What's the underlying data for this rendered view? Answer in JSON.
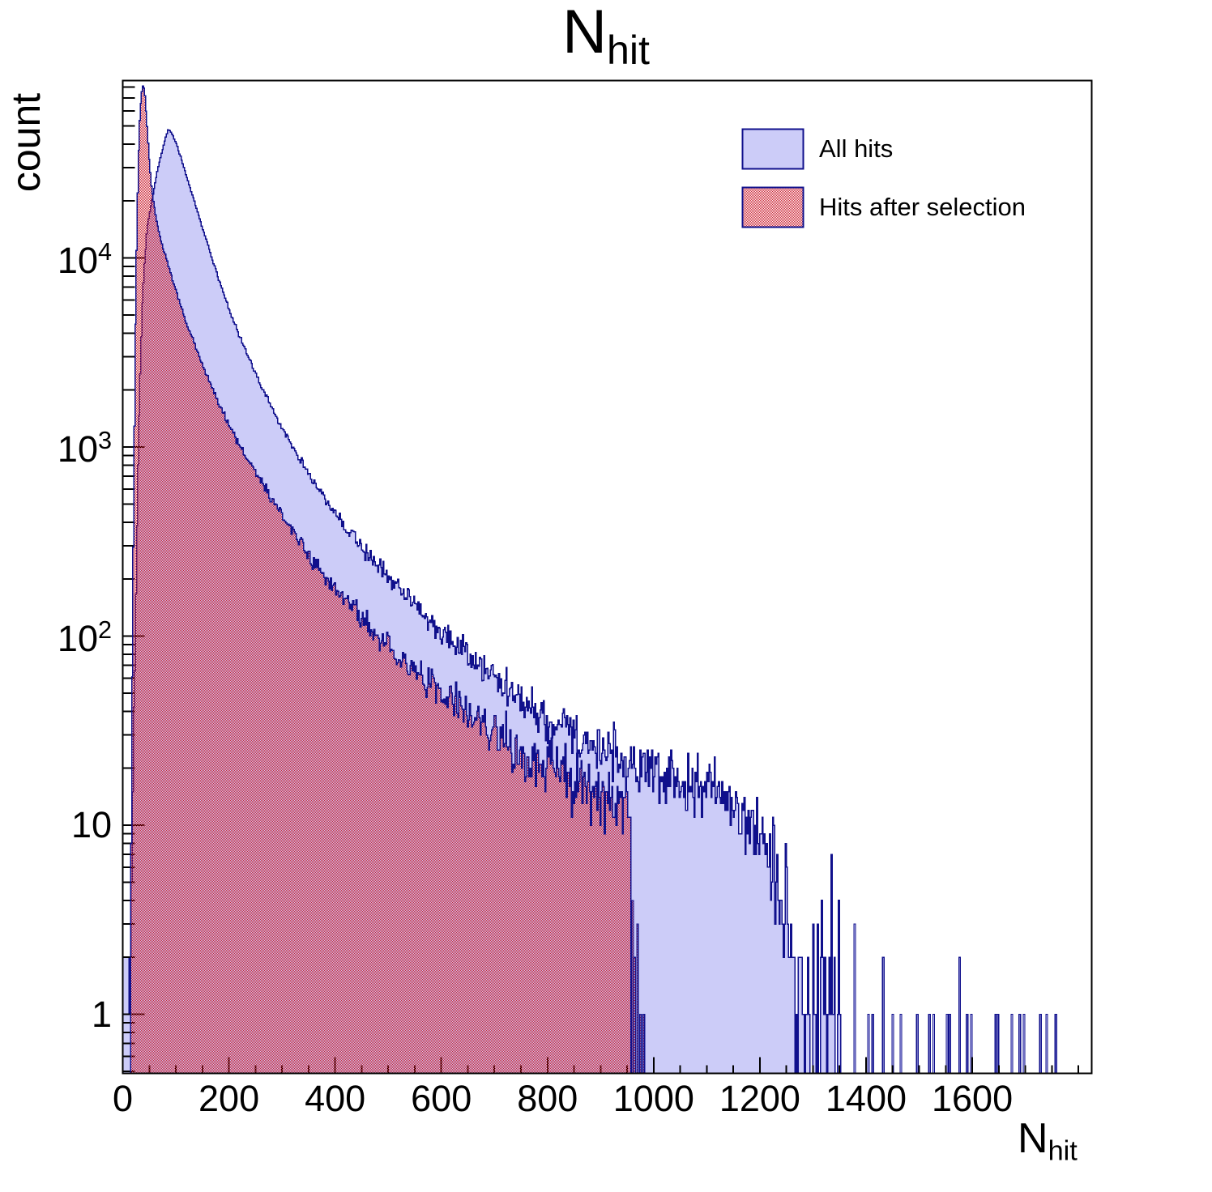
{
  "title": {
    "main": "N",
    "sub": "hit"
  },
  "axes": {
    "y_title": "count",
    "x_title_main": "N",
    "x_title_sub": "hit",
    "x_tick_labels": [
      "0",
      "200",
      "400",
      "600",
      "800",
      "1000",
      "1200",
      "1400",
      "1600"
    ],
    "y_tick_labels": [
      {
        "base": "1",
        "exp": ""
      },
      {
        "base": "10",
        "exp": ""
      },
      {
        "base": "10",
        "exp": "2"
      },
      {
        "base": "10",
        "exp": "3"
      },
      {
        "base": "10",
        "exp": "4"
      }
    ]
  },
  "legend": {
    "items": [
      {
        "label": "All hits",
        "swatch": "solid"
      },
      {
        "label": "Hits after selection",
        "swatch": "checker"
      }
    ]
  },
  "colors": {
    "background": "#ffffff",
    "axis": "#000000",
    "blue_fill": "#ccccf8",
    "navy_line": "#10108c",
    "red": "#cc2233"
  },
  "chart_data": {
    "type": "bar",
    "subtype": "step-histogram",
    "title": "N_hit",
    "xlabel": "N_hit",
    "ylabel": "count",
    "yscale": "log",
    "xlim": [
      0,
      1825
    ],
    "ylim": [
      0.49,
      88000
    ],
    "grid": false,
    "legend_position": "top-right-inside",
    "x_major_ticks": [
      0,
      200,
      400,
      600,
      800,
      1000,
      1200,
      1400,
      1600
    ],
    "x_minor_step": 50,
    "y_major_ticks": [
      1,
      10,
      100,
      1000,
      10000
    ],
    "bin_width": 2,
    "series": [
      {
        "name": "All hits",
        "style": "solid",
        "peak": {
          "x": 84,
          "count": 47500
        },
        "anchors": [
          [
            0,
            2
          ],
          [
            2,
            2
          ],
          [
            4,
            1
          ],
          [
            6,
            1
          ],
          [
            8,
            1
          ],
          [
            10,
            1
          ],
          [
            12,
            2
          ],
          [
            14,
            3
          ],
          [
            16,
            6
          ],
          [
            18,
            14
          ],
          [
            20,
            30
          ],
          [
            22,
            75
          ],
          [
            24,
            170
          ],
          [
            26,
            380
          ],
          [
            28,
            800
          ],
          [
            30,
            1500
          ],
          [
            33,
            3200
          ],
          [
            36,
            5800
          ],
          [
            40,
            9500
          ],
          [
            45,
            14500
          ],
          [
            50,
            17500
          ],
          [
            55,
            21000
          ],
          [
            60,
            25000
          ],
          [
            65,
            29500
          ],
          [
            70,
            34000
          ],
          [
            75,
            38500
          ],
          [
            80,
            43500
          ],
          [
            84,
            47500
          ],
          [
            88,
            47000
          ],
          [
            93,
            44500
          ],
          [
            100,
            40000
          ],
          [
            110,
            33000
          ],
          [
            120,
            26500
          ],
          [
            130,
            21500
          ],
          [
            140,
            17500
          ],
          [
            155,
            12800
          ],
          [
            170,
            9400
          ],
          [
            185,
            7000
          ],
          [
            200,
            5300
          ],
          [
            215,
            4100
          ],
          [
            230,
            3250
          ],
          [
            245,
            2600
          ],
          [
            260,
            2100
          ],
          [
            280,
            1600
          ],
          [
            300,
            1250
          ],
          [
            320,
            990
          ],
          [
            340,
            800
          ],
          [
            360,
            650
          ],
          [
            380,
            535
          ],
          [
            400,
            445
          ],
          [
            425,
            360
          ],
          [
            450,
            295
          ],
          [
            475,
            245
          ],
          [
            500,
            205
          ],
          [
            525,
            172
          ],
          [
            550,
            146
          ],
          [
            575,
            124
          ],
          [
            600,
            106
          ],
          [
            630,
            88
          ],
          [
            660,
            74
          ],
          [
            690,
            63
          ],
          [
            720,
            54
          ],
          [
            750,
            47
          ],
          [
            780,
            41
          ],
          [
            810,
            36
          ],
          [
            840,
            32
          ],
          [
            870,
            28
          ],
          [
            900,
            25
          ],
          [
            930,
            23
          ],
          [
            960,
            21
          ],
          [
            990,
            19
          ],
          [
            1020,
            18
          ],
          [
            1050,
            17
          ],
          [
            1080,
            16
          ],
          [
            1110,
            15
          ],
          [
            1140,
            13
          ],
          [
            1170,
            11
          ],
          [
            1195,
            9
          ],
          [
            1215,
            7
          ],
          [
            1232,
            5
          ],
          [
            1245,
            4
          ],
          [
            1258,
            2
          ],
          [
            1268,
            1.3
          ],
          [
            1290,
            1.1
          ],
          [
            1310,
            1
          ],
          [
            1330,
            1
          ],
          [
            1352,
            0.9
          ]
        ],
        "tail_bars": [
          [
            1377,
            3
          ],
          [
            1403,
            1
          ],
          [
            1411,
            1
          ],
          [
            1431,
            2
          ],
          [
            1449,
            1
          ],
          [
            1464,
            1
          ],
          [
            1495,
            1
          ],
          [
            1518,
            1
          ],
          [
            1526,
            1
          ],
          [
            1551,
            1
          ],
          [
            1556,
            1
          ],
          [
            1575,
            2
          ],
          [
            1589,
            1
          ],
          [
            1597,
            1
          ],
          [
            1643,
            1
          ],
          [
            1647,
            1
          ],
          [
            1673,
            1
          ],
          [
            1688,
            1
          ],
          [
            1696,
            1
          ],
          [
            1727,
            1
          ],
          [
            1739,
            1
          ],
          [
            1756,
            1
          ]
        ]
      },
      {
        "name": "Hits after selection",
        "style": "checker",
        "peak": {
          "x": 37,
          "count": 81000
        },
        "anchors": [
          [
            13,
            1
          ],
          [
            15,
            8
          ],
          [
            17,
            60
          ],
          [
            19,
            300
          ],
          [
            21,
            1300
          ],
          [
            23,
            4500
          ],
          [
            25,
            11000
          ],
          [
            27,
            22000
          ],
          [
            29,
            37000
          ],
          [
            31,
            53000
          ],
          [
            33,
            66000
          ],
          [
            35,
            76000
          ],
          [
            37,
            81000
          ],
          [
            39,
            79000
          ],
          [
            41,
            72000
          ],
          [
            43,
            60000
          ],
          [
            46,
            45000
          ],
          [
            49,
            33000
          ],
          [
            53,
            24000
          ],
          [
            58,
            19000
          ],
          [
            64,
            15000
          ],
          [
            72,
            12000
          ],
          [
            82,
            9700
          ],
          [
            92,
            7800
          ],
          [
            102,
            6300
          ],
          [
            112,
            5200
          ],
          [
            125,
            4100
          ],
          [
            138,
            3300
          ],
          [
            152,
            2600
          ],
          [
            166,
            2100
          ],
          [
            180,
            1700
          ],
          [
            200,
            1300
          ],
          [
            220,
            1020
          ],
          [
            240,
            810
          ],
          [
            260,
            650
          ],
          [
            280,
            530
          ],
          [
            300,
            435
          ],
          [
            320,
            360
          ],
          [
            345,
            285
          ],
          [
            370,
            228
          ],
          [
            395,
            185
          ],
          [
            420,
            152
          ],
          [
            450,
            122
          ],
          [
            480,
            99
          ],
          [
            510,
            82
          ],
          [
            540,
            69
          ],
          [
            570,
            58
          ],
          [
            600,
            50
          ],
          [
            640,
            41
          ],
          [
            680,
            34
          ],
          [
            720,
            28
          ],
          [
            760,
            24
          ],
          [
            800,
            21
          ],
          [
            840,
            18
          ],
          [
            880,
            16
          ],
          [
            920,
            14
          ],
          [
            950,
            13
          ],
          [
            956,
            11
          ]
        ],
        "tail_bars": [
          [
            959,
            4
          ],
          [
            963,
            2
          ],
          [
            968,
            3
          ],
          [
            974,
            1
          ],
          [
            980,
            1
          ]
        ]
      }
    ]
  }
}
